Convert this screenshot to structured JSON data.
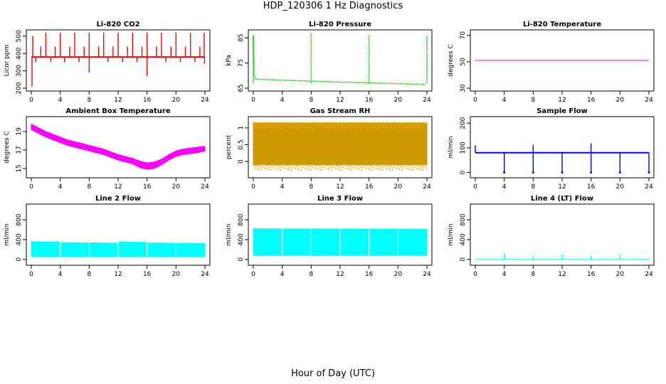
{
  "title": "HDP_120306  1 Hz Diagnostics",
  "xlabel": "Hour of Day (UTC)",
  "colors": {
    "co2": "#ff0000",
    "pressure": "#00cc00",
    "licor_temp": "#ff00ff",
    "ambient": "#ff00ff",
    "rh_fill": "#cc9900",
    "rh_dots": "#ffaa00",
    "sample_flow": "#0000ff",
    "line_flow": "#00ffff"
  },
  "chart_data": [
    {
      "id": "co2",
      "type": "line",
      "title": "Li-820 CO2",
      "ylabel": "Licor ppm",
      "xlim": [
        0,
        24
      ],
      "ylim": [
        200,
        520
      ],
      "xticks": [
        0,
        4,
        8,
        12,
        16,
        20,
        24
      ],
      "yticks": [
        200,
        300,
        400,
        500
      ],
      "series": [
        {
          "name": "CO2",
          "baseline": 380,
          "spikes_up": [
            {
              "x": 0.2,
              "y": 500
            },
            {
              "x": 1.3,
              "y": 440
            },
            {
              "x": 2.0,
              "y": 520
            },
            {
              "x": 3.3,
              "y": 440
            },
            {
              "x": 4.0,
              "y": 520
            },
            {
              "x": 5.3,
              "y": 440
            },
            {
              "x": 6.0,
              "y": 520
            },
            {
              "x": 7.3,
              "y": 440
            },
            {
              "x": 8.0,
              "y": 520
            },
            {
              "x": 9.3,
              "y": 440
            },
            {
              "x": 10.0,
              "y": 520
            },
            {
              "x": 11.3,
              "y": 440
            },
            {
              "x": 12.0,
              "y": 520
            },
            {
              "x": 13.3,
              "y": 440
            },
            {
              "x": 14.0,
              "y": 520
            },
            {
              "x": 15.3,
              "y": 440
            },
            {
              "x": 16.0,
              "y": 520
            },
            {
              "x": 17.3,
              "y": 440
            },
            {
              "x": 18.0,
              "y": 520
            },
            {
              "x": 19.3,
              "y": 440
            },
            {
              "x": 20.0,
              "y": 520
            },
            {
              "x": 21.3,
              "y": 440
            },
            {
              "x": 22.0,
              "y": 520
            },
            {
              "x": 23.3,
              "y": 440
            },
            {
              "x": 23.9,
              "y": 520
            }
          ],
          "spikes_down": [
            {
              "x": 0.1,
              "y": 210
            },
            {
              "x": 0.6,
              "y": 350
            },
            {
              "x": 2.7,
              "y": 350
            },
            {
              "x": 4.6,
              "y": 350
            },
            {
              "x": 6.6,
              "y": 350
            },
            {
              "x": 8.0,
              "y": 290
            },
            {
              "x": 10.6,
              "y": 350
            },
            {
              "x": 12.6,
              "y": 350
            },
            {
              "x": 14.6,
              "y": 350
            },
            {
              "x": 16.0,
              "y": 270
            },
            {
              "x": 18.6,
              "y": 350
            },
            {
              "x": 20.6,
              "y": 350
            },
            {
              "x": 22.6,
              "y": 350
            },
            {
              "x": 23.95,
              "y": 340
            }
          ]
        }
      ]
    },
    {
      "id": "pressure",
      "type": "line",
      "title": "Li-820 Pressure",
      "ylabel": "kPa",
      "xlim": [
        0,
        24
      ],
      "ylim": [
        65,
        87
      ],
      "xticks": [
        0,
        4,
        8,
        12,
        16,
        20,
        24
      ],
      "yticks": [
        65,
        75,
        85
      ],
      "series": [
        {
          "name": "Pressure",
          "x": [
            0,
            0.1,
            0.3,
            2,
            4,
            6,
            8,
            10,
            12,
            14,
            16,
            18,
            20,
            22,
            23.8
          ],
          "y": [
            86,
            70,
            68.6,
            68.4,
            68.2,
            68.0,
            67.8,
            67.6,
            67.4,
            67.3,
            67.1,
            66.9,
            66.8,
            66.6,
            66.5
          ],
          "spikes": [
            {
              "x": 0,
              "y": 86
            },
            {
              "x": 8,
              "y": 87
            },
            {
              "x": 16,
              "y": 86
            },
            {
              "x": 24,
              "y": 86
            }
          ]
        }
      ]
    },
    {
      "id": "licor_temp",
      "type": "line",
      "title": "Li-820 Temperature",
      "ylabel": "degrees C",
      "xlim": [
        0,
        24
      ],
      "ylim": [
        30,
        72
      ],
      "xticks": [
        0,
        4,
        8,
        12,
        16,
        20,
        24
      ],
      "yticks": [
        30,
        50,
        70
      ],
      "series": [
        {
          "name": "Temperature",
          "x": [
            0,
            24
          ],
          "y": [
            51,
            51
          ]
        }
      ]
    },
    {
      "id": "ambient",
      "type": "area",
      "title": "Ambient Box Temperature",
      "ylabel": "degrees C",
      "xlim": [
        0,
        24
      ],
      "ylim": [
        14.3,
        20.3
      ],
      "xticks": [
        0,
        4,
        8,
        12,
        16,
        20,
        24
      ],
      "yticks": [
        15,
        17,
        19
      ],
      "series": [
        {
          "name": "Ambient",
          "x": [
            0,
            1,
            2,
            3,
            4,
            5,
            6,
            7,
            8,
            9,
            10,
            11,
            12,
            13,
            14,
            15,
            16,
            17,
            18,
            19,
            20,
            21,
            22,
            23,
            24
          ],
          "upper": [
            19.8,
            19.4,
            19.0,
            18.7,
            18.4,
            18.1,
            17.9,
            17.7,
            17.5,
            17.3,
            17.1,
            16.8,
            16.5,
            16.3,
            16.1,
            15.8,
            15.6,
            15.7,
            16.0,
            16.5,
            16.9,
            17.1,
            17.2,
            17.3,
            17.4
          ],
          "lower": [
            19.2,
            18.8,
            18.4,
            18.1,
            17.8,
            17.5,
            17.3,
            17.1,
            16.9,
            16.7,
            16.5,
            16.2,
            15.9,
            15.7,
            15.5,
            15.1,
            14.9,
            15.0,
            15.4,
            15.9,
            16.3,
            16.5,
            16.6,
            16.7,
            16.9
          ]
        }
      ]
    },
    {
      "id": "rh",
      "type": "area",
      "title": "Gas Stream RH",
      "ylabel": "percent",
      "xlim": [
        0,
        24
      ],
      "ylim": [
        -0.4,
        1.25
      ],
      "xticks": [
        0,
        4,
        8,
        12,
        16,
        20,
        24
      ],
      "yticks": [
        0.0,
        0.5,
        1.0
      ],
      "series": [
        {
          "name": "RH",
          "x": [
            0,
            24
          ],
          "upper": [
            1.15,
            1.15
          ],
          "lower": [
            -0.1,
            -0.1
          ]
        }
      ]
    },
    {
      "id": "sample_flow",
      "type": "line",
      "title": "Sample Flow",
      "ylabel": "ml/min",
      "xlim": [
        0,
        24
      ],
      "ylim": [
        -10,
        215
      ],
      "xticks": [
        0,
        4,
        8,
        12,
        16,
        20,
        24
      ],
      "yticks": [
        0,
        100,
        200
      ],
      "series": [
        {
          "name": "Sample Flow",
          "baseline": 80,
          "spikes_up": [
            {
              "x": 0,
              "y": 110
            },
            {
              "x": 8,
              "y": 112
            },
            {
              "x": 16,
              "y": 118
            }
          ],
          "spikes_down": [
            {
              "x": 4,
              "y": 0
            },
            {
              "x": 8,
              "y": 0
            },
            {
              "x": 12,
              "y": 0
            },
            {
              "x": 16,
              "y": 0
            },
            {
              "x": 20,
              "y": 0
            },
            {
              "x": 24,
              "y": 0
            }
          ]
        }
      ]
    },
    {
      "id": "line2",
      "type": "area",
      "title": "Line 2 Flow",
      "ylabel": "ml/min",
      "xlim": [
        0,
        24
      ],
      "ylim": [
        -60,
        1060
      ],
      "xticks": [
        0,
        4,
        8,
        12,
        16,
        20,
        24
      ],
      "yticks": [
        0,
        400,
        800
      ],
      "series": [
        {
          "name": "Line 2",
          "x": [
            0,
            4,
            4,
            12,
            12,
            16,
            16,
            24
          ],
          "upper": [
            360,
            350,
            340,
            330,
            350,
            345,
            335,
            320
          ],
          "lower": [
            60,
            60,
            60,
            60,
            60,
            60,
            60,
            60
          ]
        }
      ]
    },
    {
      "id": "line3",
      "type": "area",
      "title": "Line 3 Flow",
      "ylabel": "ml/min",
      "xlim": [
        0,
        24
      ],
      "ylim": [
        -60,
        1060
      ],
      "xticks": [
        0,
        4,
        8,
        12,
        16,
        20,
        24
      ],
      "yticks": [
        0,
        400,
        800
      ],
      "series": [
        {
          "name": "Line 3",
          "x": [
            0,
            24
          ],
          "upper": [
            620,
            610
          ],
          "lower": [
            80,
            80
          ]
        }
      ]
    },
    {
      "id": "line4",
      "type": "line",
      "title": "Line 4 (LT) Flow",
      "ylabel": "ml/min",
      "xlim": [
        0,
        24
      ],
      "ylim": [
        -60,
        1060
      ],
      "xticks": [
        0,
        4,
        8,
        12,
        16,
        20,
        24
      ],
      "yticks": [
        0,
        400,
        800
      ],
      "series": [
        {
          "name": "Line 4",
          "baseline": 0,
          "spikes_up": [
            {
              "x": 4,
              "y": 110
            },
            {
              "x": 8,
              "y": 80
            },
            {
              "x": 12,
              "y": 100
            },
            {
              "x": 16,
              "y": 80
            },
            {
              "x": 20,
              "y": 100
            },
            {
              "x": 24,
              "y": 20
            }
          ]
        }
      ]
    }
  ]
}
